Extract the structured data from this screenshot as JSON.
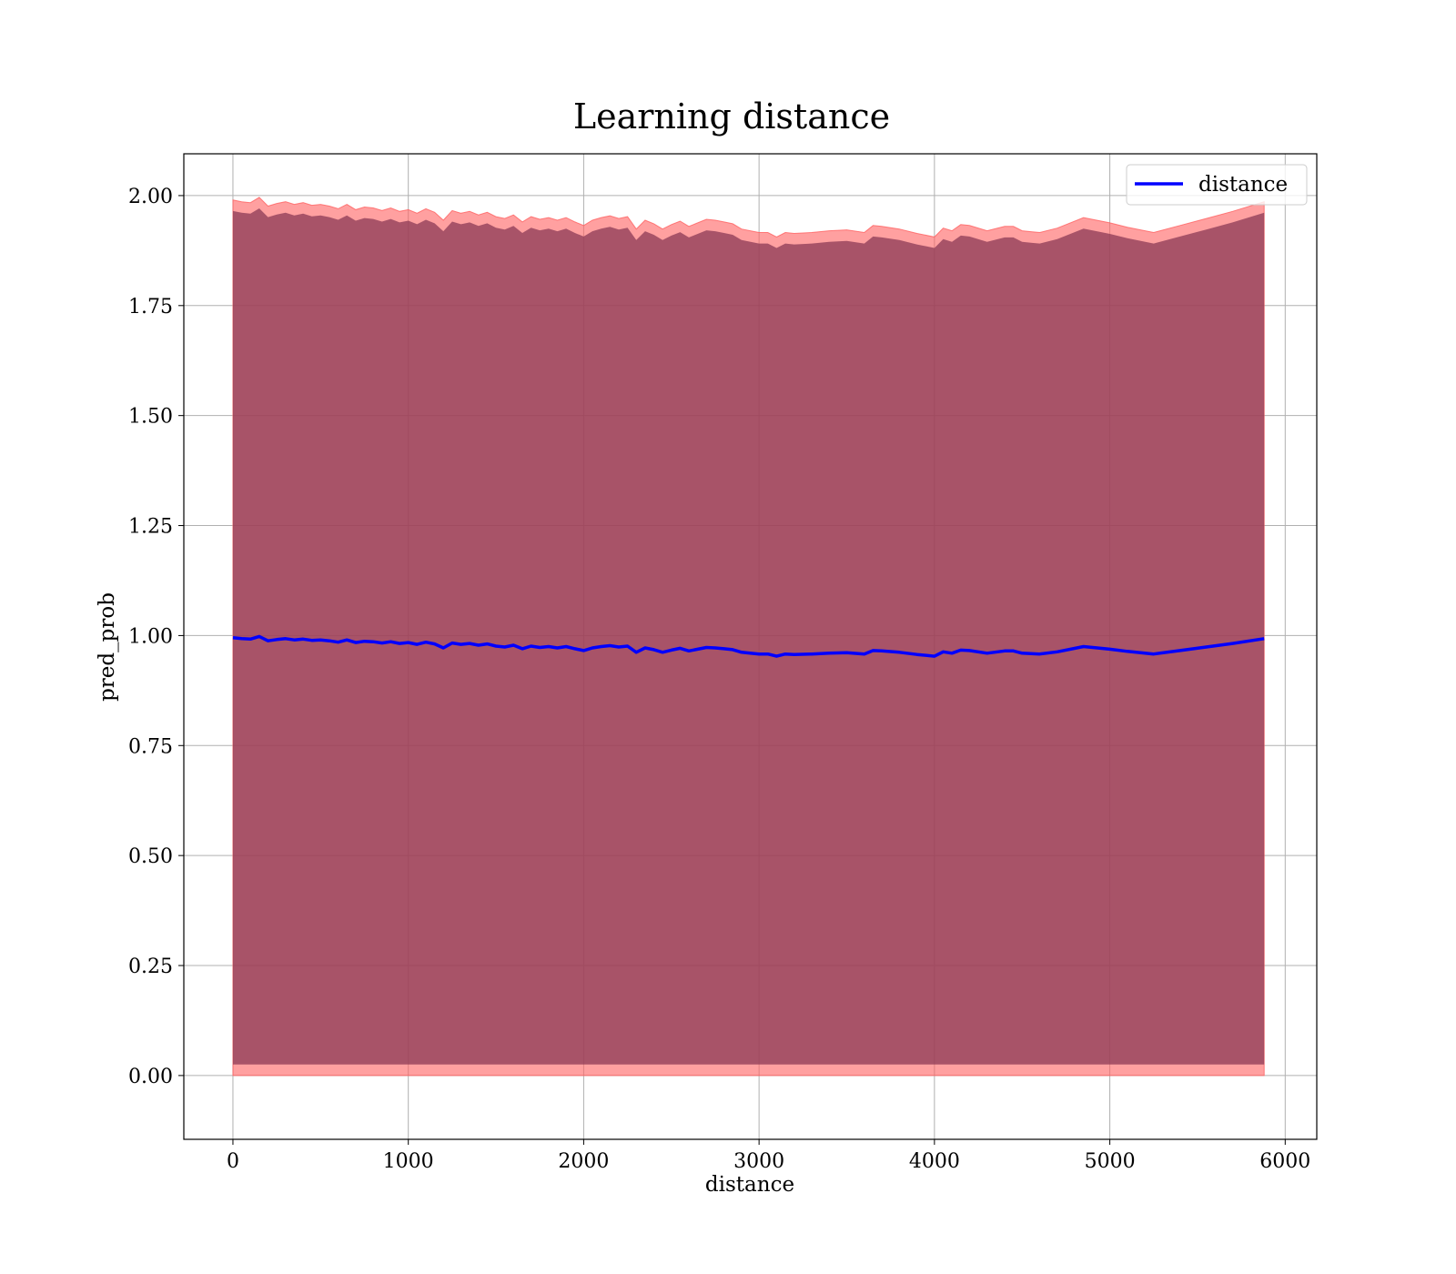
{
  "chart_data": {
    "type": "line",
    "title": "Learning distance",
    "xlabel": "distance",
    "ylabel": "pred_prob",
    "xlim": [
      -280,
      6180
    ],
    "ylim": [
      -0.145,
      2.095
    ],
    "xticks": [
      0,
      1000,
      2000,
      3000,
      4000,
      5000,
      6000
    ],
    "xtick_labels": [
      "0",
      "1000",
      "2000",
      "3000",
      "4000",
      "5000",
      "6000"
    ],
    "yticks": [
      0.0,
      0.25,
      0.5,
      0.75,
      1.0,
      1.25,
      1.5,
      1.75,
      2.0
    ],
    "ytick_labels": [
      "0.00",
      "0.25",
      "0.50",
      "0.75",
      "1.00",
      "1.25",
      "1.50",
      "1.75",
      "2.00"
    ],
    "grid": true,
    "legend_position": "top-right",
    "colors": {
      "line": "#0000ff",
      "inner_band": "#8b3a55",
      "outer_band": "#ff6060",
      "axes": "#000000",
      "grid": "#b0b0b0"
    },
    "series": [
      {
        "name": "distance",
        "x": [
          0,
          50,
          100,
          150,
          200,
          250,
          300,
          350,
          400,
          450,
          500,
          550,
          600,
          650,
          700,
          750,
          800,
          850,
          900,
          950,
          1000,
          1050,
          1100,
          1150,
          1200,
          1250,
          1300,
          1350,
          1400,
          1450,
          1500,
          1550,
          1600,
          1650,
          1700,
          1750,
          1800,
          1850,
          1900,
          1950,
          2000,
          2050,
          2100,
          2150,
          2200,
          2250,
          2300,
          2350,
          2400,
          2450,
          2500,
          2550,
          2600,
          2650,
          2700,
          2750,
          2800,
          2850,
          2900,
          3000,
          3050,
          3100,
          3150,
          3200,
          3300,
          3400,
          3500,
          3600,
          3650,
          3700,
          3800,
          3900,
          4000,
          4050,
          4100,
          4150,
          4200,
          4300,
          4400,
          4450,
          4500,
          4550,
          4600,
          4700,
          4850,
          5000,
          5100,
          5250,
          5400,
          5550,
          5700,
          5880
        ],
        "y": [
          0.995,
          0.993,
          0.992,
          0.998,
          0.988,
          0.991,
          0.993,
          0.99,
          0.992,
          0.989,
          0.99,
          0.988,
          0.985,
          0.99,
          0.984,
          0.987,
          0.986,
          0.983,
          0.986,
          0.982,
          0.984,
          0.98,
          0.985,
          0.981,
          0.972,
          0.983,
          0.98,
          0.982,
          0.978,
          0.981,
          0.976,
          0.974,
          0.978,
          0.97,
          0.976,
          0.973,
          0.975,
          0.972,
          0.975,
          0.97,
          0.966,
          0.972,
          0.975,
          0.977,
          0.974,
          0.976,
          0.962,
          0.972,
          0.968,
          0.962,
          0.967,
          0.971,
          0.965,
          0.969,
          0.973,
          0.972,
          0.97,
          0.968,
          0.962,
          0.958,
          0.958,
          0.953,
          0.958,
          0.957,
          0.958,
          0.96,
          0.961,
          0.958,
          0.966,
          0.965,
          0.962,
          0.957,
          0.953,
          0.963,
          0.96,
          0.967,
          0.966,
          0.96,
          0.965,
          0.965,
          0.96,
          0.959,
          0.958,
          0.963,
          0.975,
          0.969,
          0.964,
          0.958,
          0.966,
          0.974,
          0.982,
          0.993
        ]
      }
    ]
  }
}
